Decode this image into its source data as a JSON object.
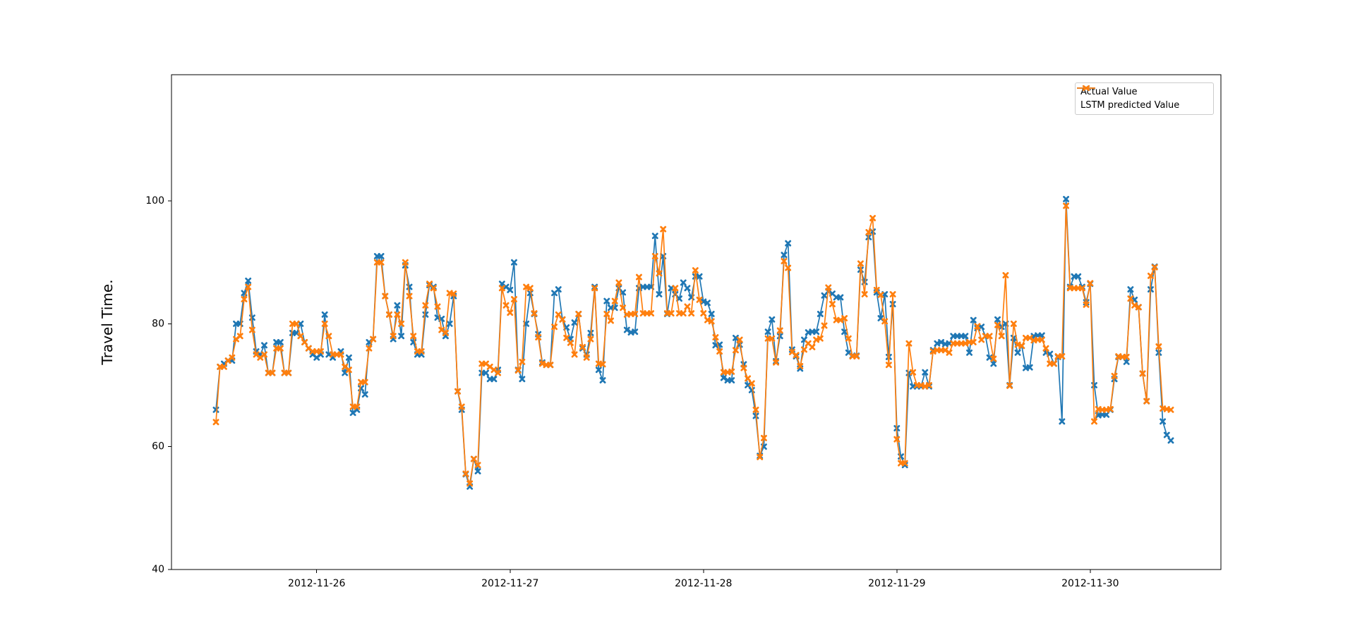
{
  "chart_data": {
    "type": "line",
    "title": "",
    "xlabel": "",
    "ylabel": "Travel Time.",
    "legend_position": "upper right",
    "grid": false,
    "marker": "X",
    "ylim": [
      40,
      120.5
    ],
    "y_ticks": [
      40,
      60,
      80,
      100
    ],
    "x_start": "2012-11-25 11:30",
    "x_interval_minutes": 30,
    "x_ticks": [
      {
        "label": "2012-11-26",
        "offset": 25
      },
      {
        "label": "2012-11-27",
        "offset": 73
      },
      {
        "label": "2012-11-28",
        "offset": 121
      },
      {
        "label": "2012-11-29",
        "offset": 169
      },
      {
        "label": "2012-11-30",
        "offset": 217
      }
    ],
    "series": [
      {
        "name": "Actual Value",
        "color": "#1f77b4",
        "values": [
          66,
          73,
          73.5,
          74,
          74,
          80,
          80,
          85,
          87,
          81,
          75.5,
          75,
          76.5,
          72,
          72,
          77,
          77,
          72,
          72,
          78.5,
          78.5,
          80,
          77,
          76,
          75,
          74.5,
          75,
          81.5,
          75,
          74.5,
          75,
          75.5,
          72,
          74.5,
          65.5,
          66,
          69.5,
          68.5,
          77,
          77.5,
          91,
          91,
          84.5,
          81.5,
          77.5,
          83,
          78,
          89.5,
          86,
          77,
          75,
          75,
          81.5,
          86.3,
          86,
          81,
          80.8,
          78,
          80,
          84.5,
          69,
          66,
          55.5,
          53.5,
          58,
          56,
          72,
          72,
          71,
          71,
          72.5,
          86.5,
          86,
          85.5,
          90,
          72.5,
          71,
          80,
          85,
          81.6,
          78.3,
          73.7,
          73.3,
          73.3,
          85,
          85.6,
          80.7,
          79.4,
          77.5,
          80.2,
          81.6,
          76,
          75,
          78.5,
          86,
          72.5,
          70.8,
          83.7,
          82.6,
          82.6,
          85.8,
          85.1,
          79,
          78.6,
          78.7,
          85.8,
          86,
          86,
          86,
          94.3,
          84.8,
          91,
          81.6,
          85.8,
          84.8,
          84.1,
          86.7,
          85.8,
          84.3,
          87.7,
          87.7,
          83.6,
          83.4,
          81.6,
          76.5,
          76.6,
          71.2,
          70.8,
          70.8,
          77.7,
          76.6,
          73.4,
          70,
          69.2,
          65,
          58.5,
          60,
          78.7,
          80.7,
          73.9,
          78,
          91.2,
          93.1,
          75.8,
          74.7,
          72.7,
          77.4,
          78.6,
          78.7,
          78.7,
          81.6,
          84.6,
          85.3,
          84.9,
          84.3,
          84.3,
          78.7,
          75.3,
          74.8,
          74.8,
          88.8,
          86.8,
          94.1,
          95,
          85.1,
          80.9,
          84.8,
          74.6,
          83.2,
          63,
          58.4,
          57,
          72,
          69.8,
          69.8,
          69.8,
          72.1,
          69.8,
          75.7,
          76.8,
          77,
          76.7,
          76.8,
          78,
          78,
          78,
          78,
          75.3,
          80.6,
          79.3,
          79.5,
          78,
          74.5,
          73.5,
          80.7,
          79.5,
          80,
          70,
          77.7,
          75.3,
          76.4,
          72.8,
          72.9,
          78,
          78.1,
          78.1,
          75.3,
          75.1,
          73.5,
          74.6,
          64.1,
          100.3,
          86,
          87.7,
          87.7,
          86,
          83.5,
          86.5,
          70,
          65.1,
          65.2,
          65.2,
          66,
          71,
          74.6,
          74.6,
          73.8,
          85.6,
          83.9,
          82.7,
          71.9,
          67.4,
          85.6,
          89.3,
          75.3,
          64.1,
          61.9,
          61
        ]
      },
      {
        "name": "LSTM predicted Value",
        "color": "#ff7f0e",
        "values": [
          64,
          73,
          73,
          74,
          74.5,
          77.5,
          78,
          84,
          86,
          79,
          75,
          74.5,
          75,
          72,
          72,
          76,
          76,
          72,
          72,
          80,
          80,
          78,
          77,
          76,
          75.5,
          75.5,
          75.5,
          80,
          78,
          75,
          75,
          75,
          73,
          72.5,
          66.5,
          66.5,
          70.5,
          70.5,
          76,
          77.5,
          90,
          90,
          84.5,
          81.5,
          78,
          81.5,
          80,
          90,
          84.5,
          78,
          75.5,
          75.5,
          83,
          86.5,
          85.8,
          82.8,
          79,
          78.5,
          85,
          84.9,
          69,
          66.5,
          55.6,
          54,
          58,
          57,
          73.5,
          73.5,
          73,
          72.5,
          72,
          85.8,
          83,
          81.8,
          84,
          72.4,
          73.8,
          86,
          85.8,
          81.7,
          77.8,
          73.5,
          73.3,
          73.3,
          79.5,
          81.5,
          80.7,
          77.7,
          76.9,
          75,
          81.6,
          76.2,
          74.5,
          77.5,
          85.8,
          73.5,
          73.4,
          81.6,
          80.5,
          83.7,
          86.7,
          82.6,
          81.5,
          81.6,
          81.6,
          87.6,
          81.7,
          81.7,
          81.7,
          91,
          88.2,
          95.4,
          81.7,
          81.7,
          85.8,
          81.7,
          81.7,
          82.8,
          81.7,
          88.7,
          83.9,
          81.7,
          80.6,
          80.4,
          77.8,
          75.5,
          72.1,
          72.1,
          72.2,
          75.7,
          77.4,
          72.8,
          71.1,
          70.3,
          66,
          58.3,
          61.4,
          77.6,
          77.6,
          73.7,
          78.9,
          90.2,
          89.1,
          75.4,
          74.9,
          73.1,
          75.8,
          76.8,
          76.2,
          77.4,
          77.6,
          79.7,
          85.9,
          83.2,
          80.6,
          80.6,
          80.9,
          77.6,
          74.7,
          74.7,
          89.8,
          84.8,
          94.9,
          97.2,
          85.5,
          84.7,
          80.4,
          73.3,
          84.8,
          61.2,
          57.3,
          57.3,
          76.8,
          72.1,
          70,
          70,
          69.8,
          70,
          75.5,
          75.7,
          75.7,
          75.7,
          75.3,
          76.8,
          76.8,
          76.8,
          76.8,
          77,
          77,
          79.6,
          77.4,
          78,
          78,
          74.3,
          79.8,
          78,
          87.9,
          69.9,
          80,
          76.6,
          76.4,
          77.7,
          77.7,
          77.3,
          77.4,
          77.4,
          76,
          73.5,
          73.5,
          74.7,
          74.7,
          99.2,
          85.8,
          85.8,
          85.8,
          85.8,
          83.1,
          86.6,
          64.1,
          66.1,
          66,
          66,
          66.1,
          71.5,
          74.7,
          74.6,
          74.6,
          84.1,
          83,
          82.7,
          71.9,
          67.4,
          87.8,
          89.2,
          76.3,
          66.2,
          66.1,
          66
        ]
      }
    ]
  }
}
